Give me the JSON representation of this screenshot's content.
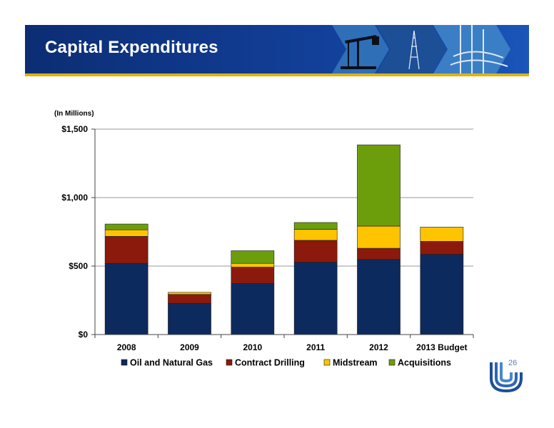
{
  "slide": {
    "title": "Capital Expenditures",
    "page_number": "26"
  },
  "colors": {
    "header": "#12409a",
    "accent": "#e2b200"
  },
  "chart_data": {
    "type": "bar",
    "stacked": true,
    "unit_note": "(In Millions)",
    "categories": [
      "2008",
      "2009",
      "2010",
      "2011",
      "2012",
      "2013 Budget"
    ],
    "series": [
      {
        "name": "Oil and Natural Gas",
        "color": "#0d2a5e",
        "values": [
          520,
          228,
          372,
          528,
          548,
          585
        ]
      },
      {
        "name": "Contract Drilling",
        "color": "#8b1a0c",
        "values": [
          197,
          65,
          120,
          160,
          82,
          95
        ]
      },
      {
        "name": "Midstream",
        "color": "#ffc400",
        "values": [
          48,
          15,
          28,
          80,
          162,
          105
        ]
      },
      {
        "name": "Acquisitions",
        "color": "#6c9e0c",
        "values": [
          42,
          0,
          92,
          50,
          593,
          0
        ]
      }
    ],
    "yticks": [
      {
        "value": 0,
        "label": "$0"
      },
      {
        "value": 500,
        "label": "$500"
      },
      {
        "value": 1000,
        "label": "$1,000"
      },
      {
        "value": 1500,
        "label": "$1,500"
      }
    ],
    "ylim": [
      0,
      1500
    ],
    "grid": true,
    "legend_position": "bottom"
  }
}
